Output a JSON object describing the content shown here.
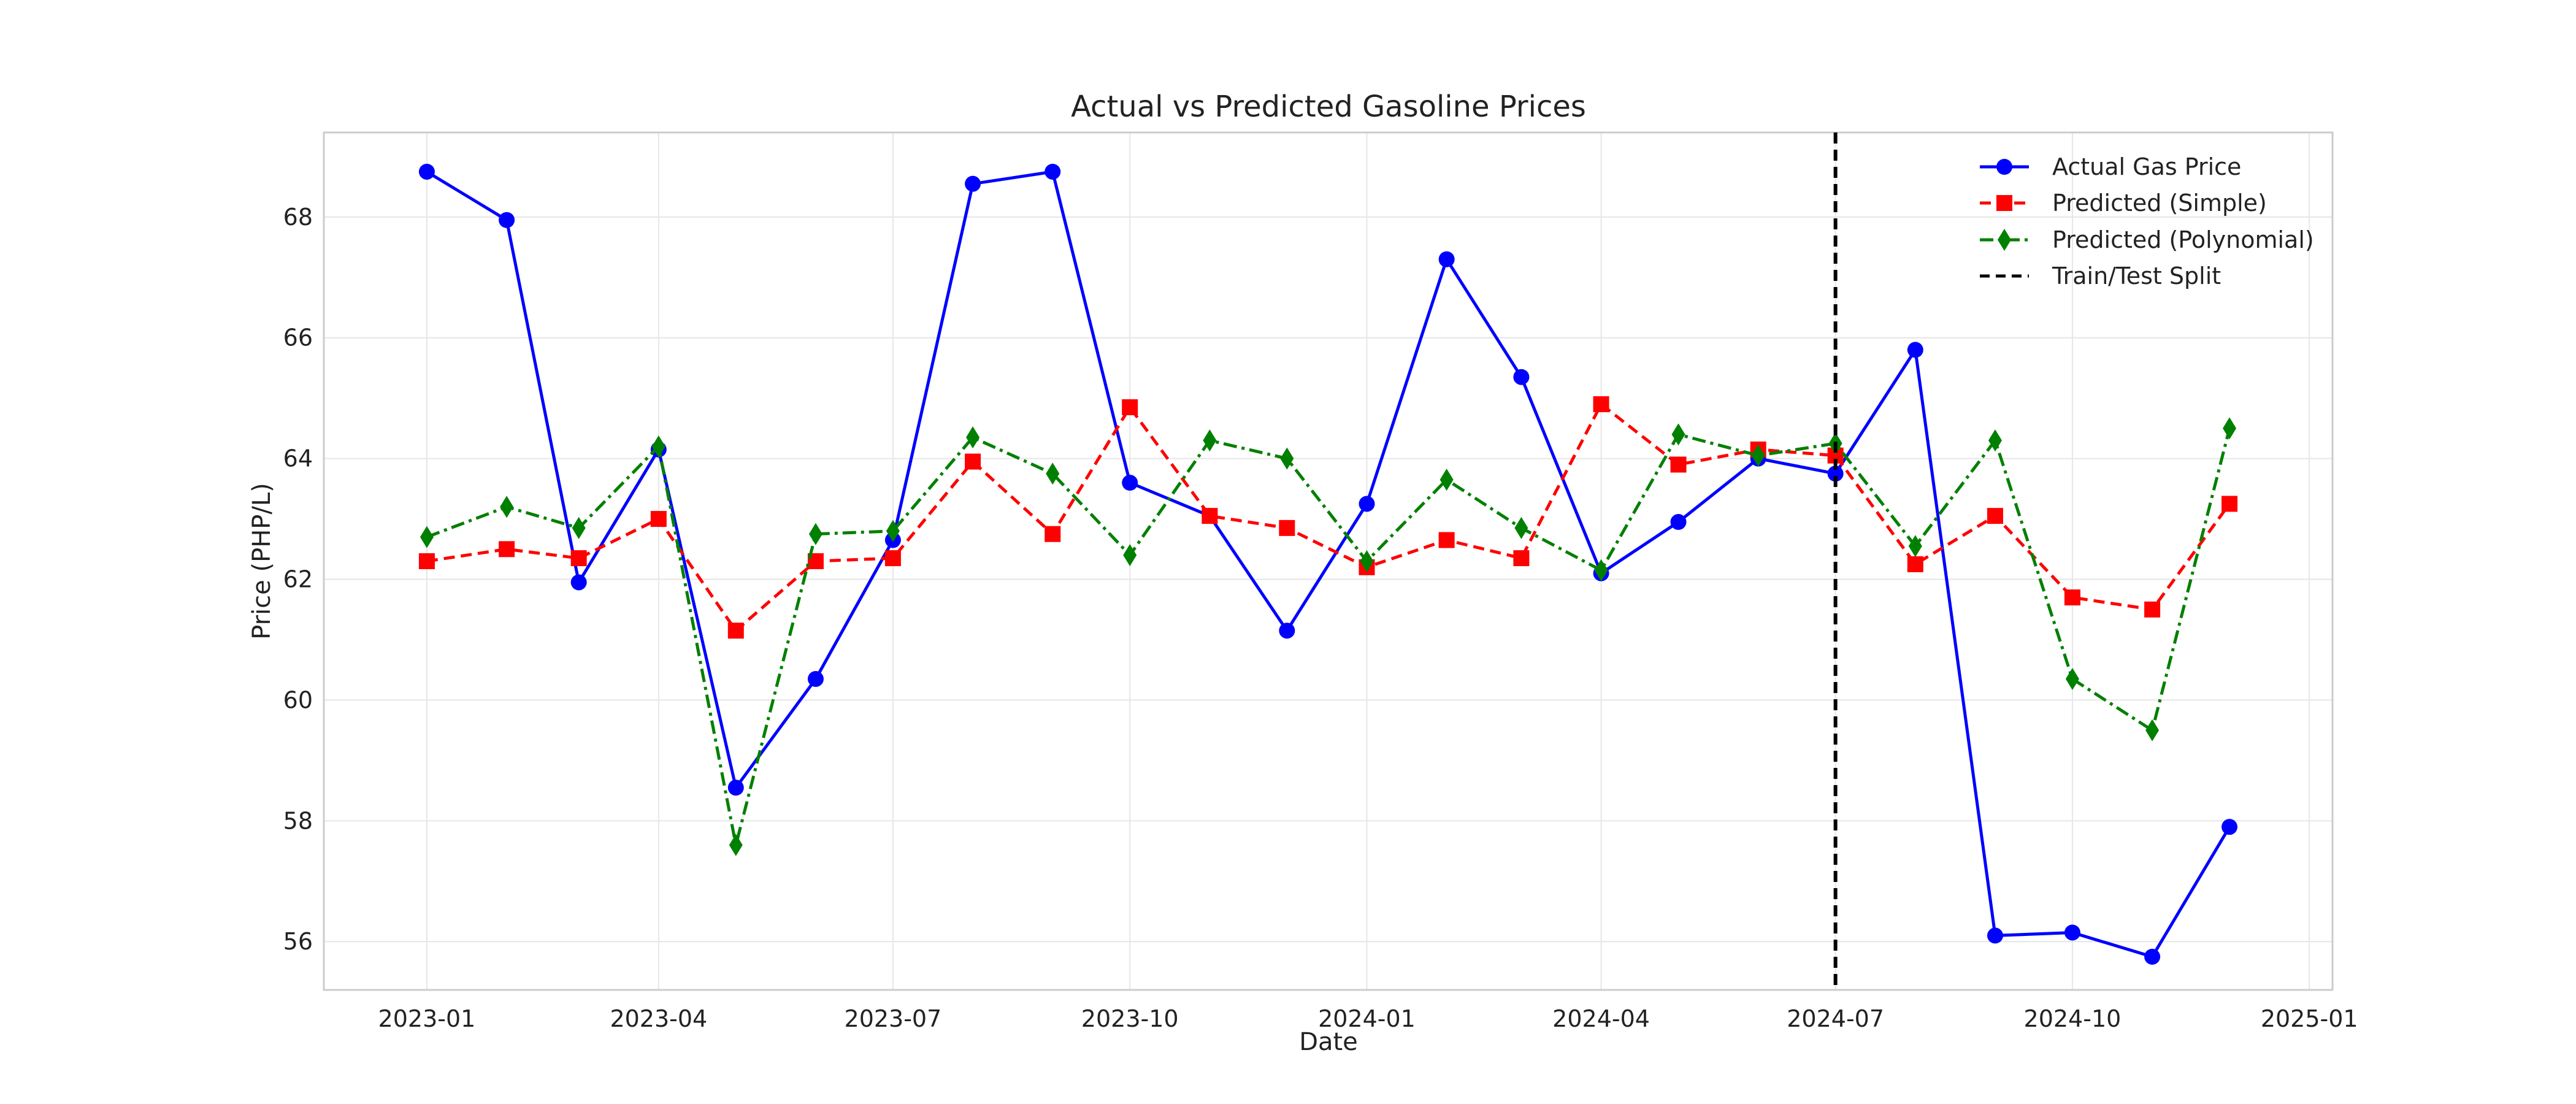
{
  "chart_data": {
    "type": "line",
    "title": "Actual vs Predicted Gasoline Prices",
    "xlabel": "Date",
    "ylabel": "Price (PHP/L)",
    "x": [
      "2023-01-01",
      "2023-02-01",
      "2023-03-01",
      "2023-04-01",
      "2023-05-01",
      "2023-06-01",
      "2023-07-01",
      "2023-08-01",
      "2023-09-01",
      "2023-10-01",
      "2023-11-01",
      "2023-12-01",
      "2024-01-01",
      "2024-02-01",
      "2024-03-01",
      "2024-04-01",
      "2024-05-01",
      "2024-06-01",
      "2024-07-01",
      "2024-08-01",
      "2024-09-01",
      "2024-10-01",
      "2024-11-01",
      "2024-12-01"
    ],
    "xlim": [
      "2022-11-22",
      "2025-01-10"
    ],
    "ylim": [
      55.2,
      69.4
    ],
    "x_ticks": [
      "2023-01",
      "2023-04",
      "2023-07",
      "2023-10",
      "2024-01",
      "2024-04",
      "2024-07",
      "2024-10",
      "2025-01"
    ],
    "y_ticks": [
      56,
      58,
      60,
      62,
      64,
      66,
      68
    ],
    "grid": true,
    "legend_position": "top-right",
    "series": [
      {
        "name": "Actual Gas Price",
        "color": "#0000ff",
        "line_style": "solid",
        "marker": "circle",
        "values": [
          68.75,
          67.95,
          61.95,
          64.15,
          58.55,
          60.35,
          62.65,
          68.55,
          68.75,
          63.6,
          63.05,
          61.15,
          63.25,
          67.3,
          65.35,
          62.1,
          62.95,
          64.0,
          63.75,
          65.8,
          56.1,
          56.15,
          55.75,
          57.9
        ]
      },
      {
        "name": "Predicted (Simple)",
        "color": "#ff0000",
        "line_style": "dashed",
        "marker": "square",
        "values": [
          62.3,
          62.5,
          62.35,
          63.0,
          61.15,
          62.3,
          62.35,
          63.95,
          62.75,
          64.85,
          63.05,
          62.85,
          62.2,
          62.65,
          62.35,
          64.9,
          63.9,
          64.15,
          64.05,
          62.25,
          63.05,
          61.7,
          61.5,
          63.25
        ]
      },
      {
        "name": "Predicted (Polynomial)",
        "color": "#008000",
        "line_style": "dashdot",
        "marker": "diamond",
        "values": [
          62.7,
          63.2,
          62.85,
          64.2,
          57.6,
          62.75,
          62.8,
          64.35,
          63.75,
          62.4,
          64.3,
          64.0,
          62.3,
          63.65,
          62.85,
          62.15,
          64.4,
          64.05,
          64.25,
          62.55,
          64.3,
          60.35,
          59.5,
          64.5
        ]
      }
    ],
    "vline": {
      "name": "Train/Test Split",
      "x": "2024-07-01",
      "color": "#000000",
      "line_style": "dashed"
    }
  }
}
